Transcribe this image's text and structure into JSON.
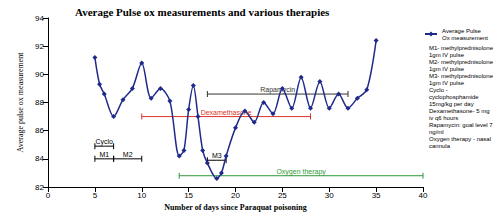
{
  "chart_data": {
    "type": "line",
    "title": "Average Pulse ox measurements and various therapies",
    "x_label": "Number of days since Paraquat poisoning",
    "y_label": "Average pulse ox measurement",
    "xlim": [
      0,
      40
    ],
    "xticks": [
      0,
      5,
      10,
      15,
      20,
      25,
      30,
      35,
      40
    ],
    "ylim": [
      82,
      94
    ],
    "yticks": [
      82,
      84,
      86,
      88,
      90,
      92,
      94
    ],
    "grid": false,
    "legend": "right",
    "series": [
      {
        "name": "Average Pulse Ox measurement",
        "color": "#1f2a8a",
        "marker": "diamond",
        "x": [
          5,
          5.5,
          6,
          7,
          8,
          9,
          10,
          11,
          12,
          13,
          14,
          14.5,
          15,
          15.5,
          16,
          16.5,
          17,
          18,
          18.5,
          19,
          20,
          21,
          22,
          23,
          24,
          25,
          26,
          27,
          28,
          29,
          30,
          31,
          32,
          33,
          34,
          35
        ],
        "values": [
          91.2,
          89.3,
          88.6,
          87,
          88.2,
          89,
          90.8,
          88.3,
          89,
          88.1,
          84.2,
          84.6,
          87.5,
          89.2,
          87,
          84.6,
          83.7,
          82.6,
          83,
          84.2,
          86.2,
          87.4,
          86.6,
          88,
          87.2,
          89,
          87.6,
          89.8,
          87.6,
          89.5,
          87.6,
          88.6,
          87.6,
          88.3,
          88.9,
          92.4
        ]
      }
    ],
    "therapies": [
      {
        "label": "Cyclo",
        "start": 5,
        "end": 7,
        "y": 84.9,
        "color": "#000000"
      },
      {
        "label": "M1",
        "start": 5,
        "end": 7,
        "y": 84.0,
        "color": "#000000"
      },
      {
        "label": "M2",
        "start": 7,
        "end": 10,
        "y": 84.0,
        "color": "#000000"
      },
      {
        "label": "M3",
        "start": 17,
        "end": 19,
        "y": 83.9,
        "color": "#000000"
      },
      {
        "label": "Dexamethasone",
        "start": 10,
        "end": 28,
        "y": 87.0,
        "color": "#d9342b"
      },
      {
        "label": "Rapamycin",
        "start": 17,
        "end": 32,
        "y": 88.6,
        "color": "#333333"
      },
      {
        "label": "Oxygen therapy",
        "start": 14,
        "end": 40,
        "y": 82.8,
        "color": "#2e9a3a"
      }
    ],
    "notes": [
      "M1- methylprednisolone 1gm IV pulse",
      "M2- methylprednisolone 1gm IV pulse",
      "M3- methylprednisolone 1gm IV pulse",
      "Cyclo - cyclophosphamide 15mg/kg per day",
      "Dexamethasone- 5 mg iv q6 hours",
      "Rapamycin: goal level 7 ng/ml",
      "Oxygen therapy - nasal cannula"
    ]
  }
}
